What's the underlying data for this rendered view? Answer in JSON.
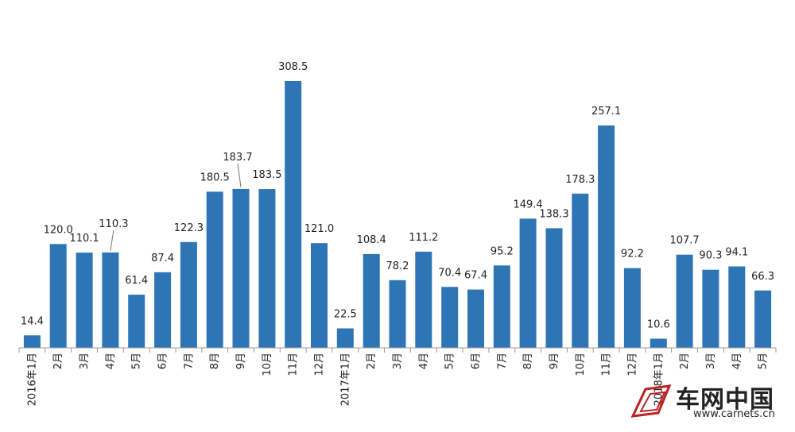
{
  "chart_data": {
    "type": "bar",
    "title": "",
    "xlabel": "",
    "ylabel": "",
    "categories": [
      "2016年1月",
      "2月",
      "3月",
      "4月",
      "5月",
      "6月",
      "7月",
      "8月",
      "9月",
      "10月",
      "11月",
      "12月",
      "2017年1月",
      "2月",
      "3月",
      "4月",
      "5月",
      "6月",
      "7月",
      "8月",
      "9月",
      "10月",
      "11月",
      "12月",
      "2018年1月",
      "2月",
      "3月",
      "4月",
      "5月"
    ],
    "values": [
      14.4,
      120.0,
      110.1,
      110.3,
      61.4,
      87.4,
      122.3,
      180.5,
      183.7,
      183.5,
      308.5,
      121.0,
      22.5,
      108.4,
      78.2,
      111.2,
      70.4,
      67.4,
      95.2,
      149.4,
      138.3,
      178.3,
      257.1,
      92.2,
      10.6,
      107.7,
      90.3,
      94.1,
      66.3
    ],
    "value_labels": [
      "14.4",
      "120.0",
      "110.1",
      "110.3",
      "61.4",
      "87.4",
      "122.3",
      "180.5",
      "183.7",
      "183.5",
      "308.5",
      "121.0",
      "22.5",
      "108.4",
      "78.2",
      "111.2",
      "70.4",
      "67.4",
      "95.2",
      "149.4",
      "138.3",
      "178.3",
      "257.1",
      "92.2",
      "10.6",
      "107.7",
      "90.3",
      "94.1",
      "66.3"
    ],
    "ylim": [
      0,
      330
    ],
    "grid": false,
    "legend": "none",
    "bar_color": "#2e75b6"
  },
  "watermark": {
    "brand": "车网中国",
    "url": "www.carnets.cn"
  }
}
